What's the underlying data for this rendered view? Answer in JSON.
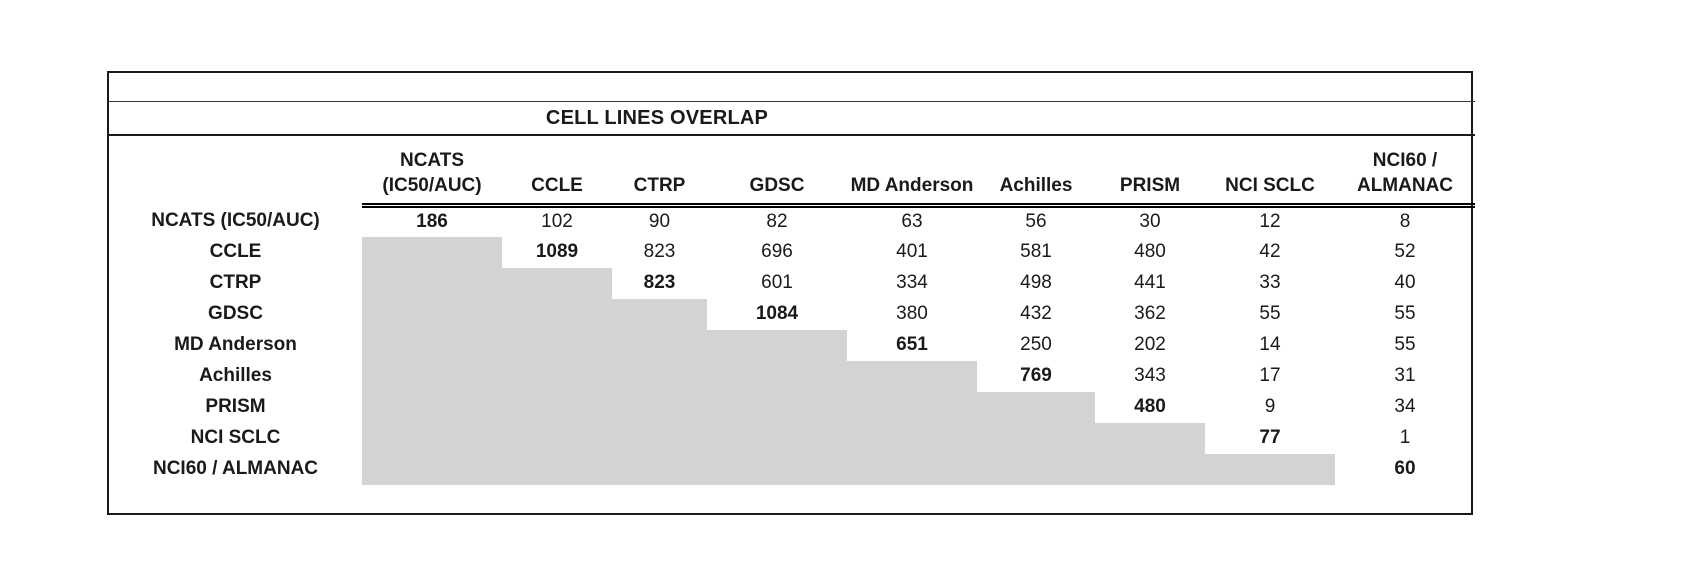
{
  "chart_data": {
    "type": "table",
    "title": "CELL LINES OVERLAP",
    "columns": [
      "NCATS\n(IC50/AUC)",
      "CCLE",
      "CTRP",
      "GDSC",
      "MD Anderson",
      "Achilles",
      "PRISM",
      "NCI SCLC",
      "NCI60 /\nALMANAC"
    ],
    "rows": [
      {
        "label": "NCATS (IC50/AUC)",
        "values": [
          186,
          102,
          90,
          82,
          63,
          56,
          30,
          12,
          8
        ]
      },
      {
        "label": "CCLE",
        "values": [
          null,
          1089,
          823,
          696,
          401,
          581,
          480,
          42,
          52
        ]
      },
      {
        "label": "CTRP",
        "values": [
          null,
          null,
          823,
          601,
          334,
          498,
          441,
          33,
          40
        ]
      },
      {
        "label": "GDSC",
        "values": [
          null,
          null,
          null,
          1084,
          380,
          432,
          362,
          55,
          55
        ]
      },
      {
        "label": "MD Anderson",
        "values": [
          null,
          null,
          null,
          null,
          651,
          250,
          202,
          14,
          55
        ]
      },
      {
        "label": "Achilles",
        "values": [
          null,
          null,
          null,
          null,
          null,
          769,
          343,
          17,
          31
        ]
      },
      {
        "label": "PRISM",
        "values": [
          null,
          null,
          null,
          null,
          null,
          null,
          480,
          9,
          34
        ]
      },
      {
        "label": "NCI SCLC",
        "values": [
          null,
          null,
          null,
          null,
          null,
          null,
          null,
          77,
          1
        ]
      },
      {
        "label": "NCI60 / ALMANAC",
        "values": [
          null,
          null,
          null,
          null,
          null,
          null,
          null,
          null,
          60
        ]
      }
    ],
    "layout_hints": {
      "lower_triangle_shaded": true,
      "shade_color": "#d3d3d3",
      "diagonal_bold": true,
      "grid": "outer-border-only",
      "header_rule": "double-line-under-data-columns"
    }
  }
}
